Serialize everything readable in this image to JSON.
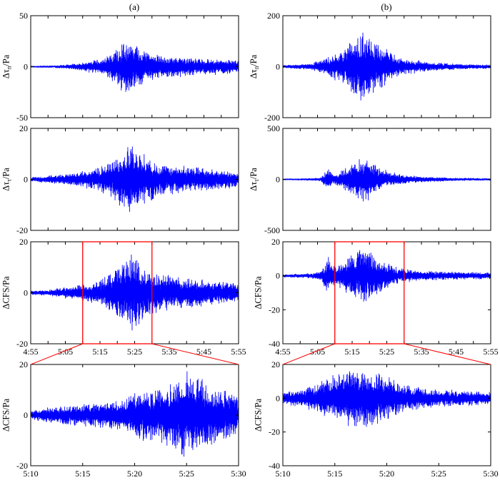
{
  "colors": {
    "trace": "#0000ff",
    "highlight": "#ff0000",
    "axes": "#000000"
  },
  "panel_labels": [
    "(a)",
    "(b)"
  ],
  "chart_data": [
    {
      "id": "a1",
      "column": "(a)",
      "type": "line",
      "ylabel": "Δτ_n/Pa",
      "ylabel_main": "Δτ",
      "ylabel_sub": "n",
      "ylabel_tail": "/Pa",
      "xlabel": "",
      "xlim": [
        "4:55",
        "5:55"
      ],
      "ylim": [
        -50,
        50
      ],
      "yticks": [
        -50,
        0,
        50
      ],
      "show_xticklabels": false,
      "series": [
        {
          "color": "#0000ff",
          "envelope": [
            {
              "t": "4:55",
              "amp": 0.6
            },
            {
              "t": "5:02",
              "amp": 1.2
            },
            {
              "t": "5:08",
              "amp": 3
            },
            {
              "t": "5:12",
              "amp": 6
            },
            {
              "t": "5:16",
              "amp": 9
            },
            {
              "t": "5:19",
              "amp": 16
            },
            {
              "t": "5:21",
              "amp": 24
            },
            {
              "t": "5:23",
              "amp": 30
            },
            {
              "t": "5:25",
              "amp": 26
            },
            {
              "t": "5:27",
              "amp": 20
            },
            {
              "t": "5:30",
              "amp": 15
            },
            {
              "t": "5:34",
              "amp": 13
            },
            {
              "t": "5:38",
              "amp": 11
            },
            {
              "t": "5:44",
              "amp": 9
            },
            {
              "t": "5:50",
              "amp": 8
            },
            {
              "t": "5:55",
              "amp": 7
            }
          ]
        }
      ]
    },
    {
      "id": "a2",
      "column": "(a)",
      "type": "line",
      "ylabel": "Δτ_τ/Pa",
      "ylabel_main": "Δτ",
      "ylabel_sub": "τ",
      "ylabel_tail": "/Pa",
      "xlabel": "",
      "xlim": [
        "4:55",
        "5:55"
      ],
      "ylim": [
        -20,
        20
      ],
      "yticks": [
        -20,
        0,
        20
      ],
      "show_xticklabels": false,
      "series": [
        {
          "color": "#0000ff",
          "envelope": [
            {
              "t": "4:55",
              "amp": 0.8
            },
            {
              "t": "5:00",
              "amp": 1.5
            },
            {
              "t": "5:06",
              "amp": 2.5
            },
            {
              "t": "5:12",
              "amp": 4
            },
            {
              "t": "5:16",
              "amp": 6
            },
            {
              "t": "5:19",
              "amp": 9
            },
            {
              "t": "5:22",
              "amp": 12
            },
            {
              "t": "5:24",
              "amp": 16
            },
            {
              "t": "5:26",
              "amp": 13
            },
            {
              "t": "5:28",
              "amp": 10
            },
            {
              "t": "5:32",
              "amp": 7
            },
            {
              "t": "5:38",
              "amp": 6
            },
            {
              "t": "5:44",
              "amp": 5
            },
            {
              "t": "5:50",
              "amp": 4
            },
            {
              "t": "5:55",
              "amp": 3.5
            }
          ]
        }
      ]
    },
    {
      "id": "a3",
      "column": "(a)",
      "type": "line",
      "ylabel": "ΔCFS/Pa",
      "xlabel": "",
      "xlim": [
        "4:55",
        "5:55"
      ],
      "ylim": [
        -20,
        20
      ],
      "yticks": [
        -20,
        0,
        20
      ],
      "xticks": [
        "4:55",
        "5:05",
        "5:15",
        "5:25",
        "5:35",
        "5:45",
        "5:55"
      ],
      "show_xticklabels": true,
      "highlight": [
        "5:10",
        "5:30"
      ],
      "series": [
        {
          "color": "#0000ff",
          "envelope": [
            {
              "t": "4:55",
              "amp": 0.8
            },
            {
              "t": "5:00",
              "amp": 1.2
            },
            {
              "t": "5:06",
              "amp": 2.5
            },
            {
              "t": "5:12",
              "amp": 4
            },
            {
              "t": "5:16",
              "amp": 6
            },
            {
              "t": "5:19",
              "amp": 10
            },
            {
              "t": "5:22",
              "amp": 14
            },
            {
              "t": "5:24",
              "amp": 18
            },
            {
              "t": "5:26",
              "amp": 15
            },
            {
              "t": "5:28",
              "amp": 11
            },
            {
              "t": "5:32",
              "amp": 8
            },
            {
              "t": "5:38",
              "amp": 7
            },
            {
              "t": "5:44",
              "amp": 6
            },
            {
              "t": "5:50",
              "amp": 5
            },
            {
              "t": "5:55",
              "amp": 4
            }
          ]
        }
      ]
    },
    {
      "id": "a4",
      "column": "(a)",
      "type": "line",
      "ylabel": "ΔCFS/Pa",
      "xlabel": "",
      "xlim": [
        "5:10",
        "5:30"
      ],
      "ylim": [
        -20,
        20
      ],
      "yticks": [
        -20,
        0,
        20
      ],
      "xticks": [
        "5:10",
        "5:15",
        "5:20",
        "5:25",
        "5:30"
      ],
      "show_xticklabels": true,
      "zoom_of": "a3",
      "series": [
        {
          "color": "#0000ff",
          "envelope": [
            {
              "t": "5:10",
              "amp": 2
            },
            {
              "t": "5:13",
              "amp": 4
            },
            {
              "t": "5:16",
              "amp": 5
            },
            {
              "t": "5:19",
              "amp": 7
            },
            {
              "t": "5:21",
              "amp": 12
            },
            {
              "t": "5:23",
              "amp": 13
            },
            {
              "t": "5:25",
              "amp": 18
            },
            {
              "t": "5:26",
              "amp": 17
            },
            {
              "t": "5:28",
              "amp": 12
            },
            {
              "t": "5:30",
              "amp": 9
            }
          ]
        }
      ]
    },
    {
      "id": "b1",
      "column": "(b)",
      "type": "line",
      "ylabel": "Δτ_n/Pa",
      "ylabel_main": "Δτ",
      "ylabel_sub": "n",
      "ylabel_tail": "/Pa",
      "xlabel": "",
      "xlim": [
        "4:55",
        "5:55"
      ],
      "ylim": [
        -200,
        200
      ],
      "yticks": [
        -200,
        0,
        200
      ],
      "show_xticklabels": false,
      "series": [
        {
          "color": "#0000ff",
          "envelope": [
            {
              "t": "4:55",
              "amp": 6
            },
            {
              "t": "5:03",
              "amp": 12
            },
            {
              "t": "5:08",
              "amp": 40
            },
            {
              "t": "5:10",
              "amp": 55
            },
            {
              "t": "5:13",
              "amp": 75
            },
            {
              "t": "5:16",
              "amp": 130
            },
            {
              "t": "5:18",
              "amp": 160
            },
            {
              "t": "5:20",
              "amp": 140
            },
            {
              "t": "5:22",
              "amp": 110
            },
            {
              "t": "5:25",
              "amp": 70
            },
            {
              "t": "5:30",
              "amp": 35
            },
            {
              "t": "5:38",
              "amp": 18
            },
            {
              "t": "5:45",
              "amp": 12
            },
            {
              "t": "5:55",
              "amp": 8
            }
          ]
        }
      ]
    },
    {
      "id": "b2",
      "column": "(b)",
      "type": "line",
      "ylabel": "Δτ_τ/Pa",
      "ylabel_main": "Δτ",
      "ylabel_sub": "τ",
      "ylabel_tail": "/Pa",
      "xlabel": "",
      "xlim": [
        "4:55",
        "5:55"
      ],
      "ylim": [
        -500,
        500
      ],
      "yticks": [
        -500,
        0,
        500
      ],
      "show_xticklabels": false,
      "series": [
        {
          "color": "#0000ff",
          "envelope": [
            {
              "t": "4:55",
              "amp": 6
            },
            {
              "t": "5:03",
              "amp": 10
            },
            {
              "t": "5:06",
              "amp": 20
            },
            {
              "t": "5:08",
              "amp": 120
            },
            {
              "t": "5:10",
              "amp": 50
            },
            {
              "t": "5:14",
              "amp": 140
            },
            {
              "t": "5:17",
              "amp": 230
            },
            {
              "t": "5:19",
              "amp": 260
            },
            {
              "t": "5:21",
              "amp": 180
            },
            {
              "t": "5:24",
              "amp": 110
            },
            {
              "t": "5:28",
              "amp": 60
            },
            {
              "t": "5:35",
              "amp": 30
            },
            {
              "t": "5:45",
              "amp": 15
            },
            {
              "t": "5:55",
              "amp": 10
            }
          ]
        }
      ]
    },
    {
      "id": "b3",
      "column": "(b)",
      "type": "line",
      "ylabel": "ΔCFS/Pa",
      "xlabel": "",
      "xlim": [
        "4:55",
        "5:55"
      ],
      "ylim": [
        -40,
        20
      ],
      "yticks": [
        -40,
        -20,
        0,
        20
      ],
      "xticks": [
        "4:55",
        "5:05",
        "5:15",
        "5:25",
        "5:35",
        "5:45",
        "5:55"
      ],
      "show_xticklabels": true,
      "highlight": [
        "5:10",
        "5:30"
      ],
      "series": [
        {
          "color": "#0000ff",
          "envelope": [
            {
              "t": "4:55",
              "amp": 0.8
            },
            {
              "t": "5:03",
              "amp": 1.5
            },
            {
              "t": "5:06",
              "amp": 3
            },
            {
              "t": "5:08",
              "amp": 12
            },
            {
              "t": "5:10",
              "amp": 6
            },
            {
              "t": "5:13",
              "amp": 10
            },
            {
              "t": "5:16",
              "amp": 16
            },
            {
              "t": "5:18",
              "amp": 19
            },
            {
              "t": "5:21",
              "amp": 14
            },
            {
              "t": "5:24",
              "amp": 10
            },
            {
              "t": "5:28",
              "amp": 5
            },
            {
              "t": "5:35",
              "amp": 3
            },
            {
              "t": "5:45",
              "amp": 2.5
            },
            {
              "t": "5:55",
              "amp": 2
            }
          ]
        }
      ]
    },
    {
      "id": "b4",
      "column": "(b)",
      "type": "line",
      "ylabel": "ΔCFS/Pa",
      "xlabel": "",
      "xlim": [
        "5:10",
        "5:30"
      ],
      "ylim": [
        -40,
        20
      ],
      "yticks": [
        -40,
        -20,
        0,
        20
      ],
      "xticks": [
        "5:10",
        "5:15",
        "5:20",
        "5:25",
        "5:30"
      ],
      "show_xticklabels": true,
      "zoom_of": "b3",
      "series": [
        {
          "color": "#0000ff",
          "envelope": [
            {
              "t": "5:10",
              "amp": 4
            },
            {
              "t": "5:12",
              "amp": 6
            },
            {
              "t": "5:14",
              "amp": 12
            },
            {
              "t": "5:16",
              "amp": 18
            },
            {
              "t": "5:18",
              "amp": 20
            },
            {
              "t": "5:20",
              "amp": 14
            },
            {
              "t": "5:22",
              "amp": 9
            },
            {
              "t": "5:24",
              "amp": 6
            },
            {
              "t": "5:27",
              "amp": 5
            },
            {
              "t": "5:30",
              "amp": 4
            }
          ]
        }
      ]
    }
  ]
}
